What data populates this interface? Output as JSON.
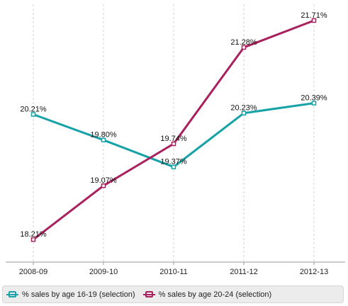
{
  "chart_data": {
    "type": "line",
    "categories": [
      "2008-09",
      "2009-10",
      "2010-11",
      "2011-12",
      "2012-13"
    ],
    "series": [
      {
        "name": "% sales by age 16-19 (selection)",
        "color": "#17a2a8",
        "values": [
          20.21,
          19.8,
          19.37,
          20.23,
          20.39
        ],
        "labels": [
          "20.21%",
          "19.80%",
          "19.37%",
          "20.23%",
          "20.39%"
        ]
      },
      {
        "name": "% sales by age 20-24 (selection)",
        "color": "#a8215e",
        "values": [
          18.21,
          19.07,
          19.74,
          21.28,
          21.71
        ],
        "labels": [
          "18.21%",
          "19.07%",
          "19.74%",
          "21.28%",
          "21.71%"
        ]
      }
    ],
    "ylim": [
      17.85,
      21.97
    ],
    "grid": "vertical-dashed",
    "legend_position": "bottom"
  }
}
